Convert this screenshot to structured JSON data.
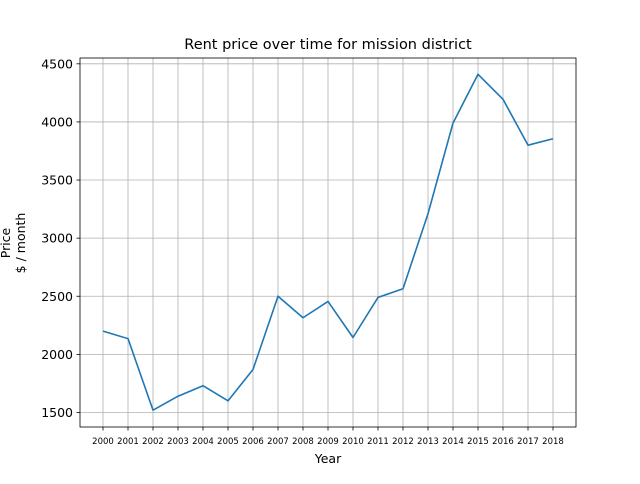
{
  "chart_data": {
    "type": "line",
    "title": "Rent price over time for mission district",
    "xlabel": "Year",
    "ylabel_lines": [
      "Price",
      "$ / month"
    ],
    "x": [
      "2000",
      "2001",
      "2002",
      "2003",
      "2004",
      "2005",
      "2006",
      "2007",
      "2008",
      "2009",
      "2010",
      "2011",
      "2012",
      "2013",
      "2014",
      "2015",
      "2016",
      "2017",
      "2018"
    ],
    "series": [
      {
        "values": [
          2200,
          2135,
          1520,
          1640,
          1730,
          1600,
          1870,
          2500,
          2315,
          2455,
          2145,
          2490,
          2565,
          3210,
          3990,
          4410,
          4195,
          3800,
          3855
        ]
      }
    ],
    "ylim": [
      1375,
      4550
    ],
    "yticks": [
      1500,
      2000,
      2500,
      3000,
      3500,
      4000,
      4500
    ],
    "grid": true,
    "legend": "none",
    "colors": {
      "line": "#1f77b4",
      "grid": "#b0b0b0",
      "axes": "#000000"
    }
  }
}
